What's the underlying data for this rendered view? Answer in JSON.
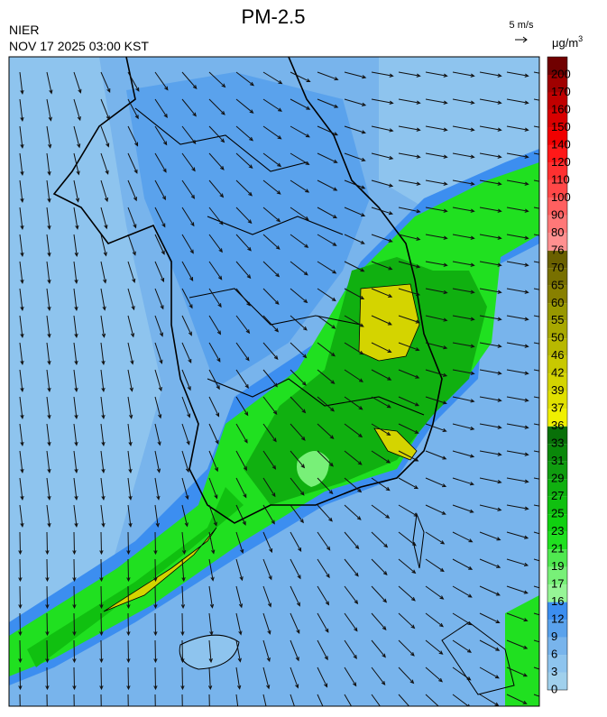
{
  "header": {
    "title": "PM-2.5",
    "agency": "NIER",
    "timestamp": "NOV 17 2025 03:00 KST",
    "wind_scale": "5 m/s"
  },
  "colorbar": {
    "unit": "μg/m",
    "unit_exponent": "3",
    "labels": [
      "0",
      "3",
      "6",
      "9",
      "12",
      "16",
      "17",
      "19",
      "21",
      "23",
      "25",
      "27",
      "29",
      "31",
      "33",
      "36",
      "37",
      "39",
      "42",
      "46",
      "50",
      "55",
      "60",
      "65",
      "70",
      "76",
      "80",
      "90",
      "100",
      "110",
      "120",
      "140",
      "150",
      "160",
      "170",
      "200"
    ],
    "colors": [
      "#a0d0ec",
      "#8ec4ee",
      "#78b4ec",
      "#5aa2ec",
      "#3c8ef0",
      "#96f596",
      "#78f078",
      "#50e850",
      "#20e020",
      "#10d010",
      "#10c010",
      "#10b010",
      "#109c10",
      "#0a880a",
      "#087008",
      "#f0f000",
      "#e0e000",
      "#d4d400",
      "#c8c800",
      "#b8b800",
      "#a8a800",
      "#989800",
      "#888000",
      "#787000",
      "#6a6000",
      "#ff9090",
      "#ff7878",
      "#ff6060",
      "#ff4848",
      "#ff3030",
      "#ff1818",
      "#f00000",
      "#d80000",
      "#c00000",
      "#a00000",
      "#700000"
    ]
  }
}
